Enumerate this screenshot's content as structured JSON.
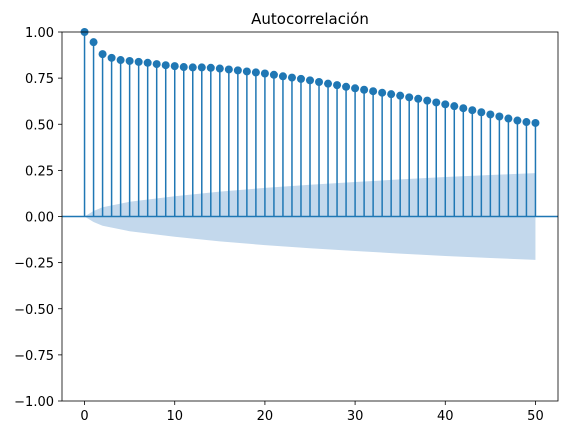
{
  "chart_data": {
    "type": "stem",
    "title": "Autocorrelación",
    "xlabel": "",
    "ylabel": "",
    "xlim": [
      -2.5,
      52.5
    ],
    "ylim": [
      -1.0,
      1.0
    ],
    "xticks": [
      0,
      10,
      20,
      30,
      40,
      50
    ],
    "xtick_labels": [
      "0",
      "10",
      "20",
      "30",
      "40",
      "50"
    ],
    "yticks": [
      -1.0,
      -0.75,
      -0.5,
      -0.25,
      0.0,
      0.25,
      0.5,
      0.75,
      1.0
    ],
    "ytick_labels": [
      "−1.00",
      "−0.75",
      "−0.50",
      "−0.25",
      "0.00",
      "0.25",
      "0.50",
      "0.75",
      "1.00"
    ],
    "grid": false,
    "series": [
      {
        "lags": [
          0,
          1,
          2,
          3,
          4,
          5,
          6,
          7,
          8,
          9,
          10,
          11,
          12,
          13,
          14,
          15,
          16,
          17,
          18,
          19,
          20,
          21,
          22,
          23,
          24,
          25,
          26,
          27,
          28,
          29,
          30,
          31,
          32,
          33,
          34,
          35,
          36,
          37,
          38,
          39,
          40,
          41,
          42,
          43,
          44,
          45,
          46,
          47,
          48,
          49,
          50
        ],
        "values": [
          1.0,
          0.945,
          0.88,
          0.86,
          0.848,
          0.843,
          0.838,
          0.833,
          0.826,
          0.82,
          0.815,
          0.81,
          0.808,
          0.808,
          0.806,
          0.802,
          0.797,
          0.792,
          0.786,
          0.781,
          0.775,
          0.768,
          0.76,
          0.753,
          0.746,
          0.738,
          0.729,
          0.72,
          0.712,
          0.703,
          0.695,
          0.687,
          0.679,
          0.671,
          0.663,
          0.655,
          0.646,
          0.638,
          0.628,
          0.618,
          0.608,
          0.598,
          0.587,
          0.576,
          0.565,
          0.553,
          0.542,
          0.531,
          0.52,
          0.512,
          0.507
        ]
      }
    ],
    "confidence_band": {
      "lags": [
        0,
        1,
        2,
        5,
        10,
        15,
        20,
        25,
        30,
        35,
        40,
        45,
        50
      ],
      "upper": [
        0.0,
        0.03,
        0.05,
        0.08,
        0.11,
        0.135,
        0.155,
        0.172,
        0.187,
        0.201,
        0.214,
        0.225,
        0.235
      ]
    },
    "colors": {
      "stem": "#1f77b4",
      "band": "#c3d8ec",
      "zero_line": "#1f77b4"
    }
  }
}
